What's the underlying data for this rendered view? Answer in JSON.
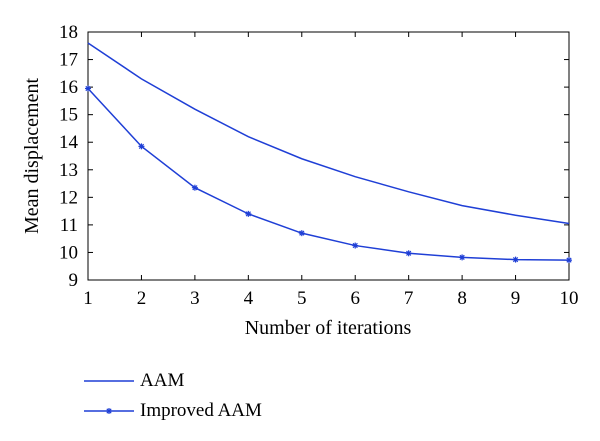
{
  "chart_data": {
    "type": "line",
    "x": [
      1,
      2,
      3,
      4,
      5,
      6,
      7,
      8,
      9,
      10
    ],
    "series": [
      {
        "name": "AAM",
        "values": [
          17.6,
          16.3,
          15.2,
          14.2,
          13.4,
          12.75,
          12.2,
          11.7,
          11.35,
          11.05
        ],
        "marker": "none",
        "color": "#1f3fd6"
      },
      {
        "name": "Improved AAM",
        "values": [
          15.95,
          13.85,
          12.35,
          11.4,
          10.7,
          10.25,
          9.97,
          9.82,
          9.74,
          9.72
        ],
        "marker": "star",
        "color": "#1f3fd6"
      }
    ],
    "xlabel": "Number of iterations",
    "ylabel": "Mean displacement",
    "xlim": [
      1,
      10
    ],
    "ylim": [
      9,
      18
    ],
    "xticks": [
      "1",
      "2",
      "3",
      "4",
      "5",
      "6",
      "7",
      "8",
      "9",
      "10"
    ],
    "yticks": [
      "9",
      "10",
      "11",
      "12",
      "13",
      "14",
      "15",
      "16",
      "17",
      "18"
    ],
    "grid": false,
    "legend_position": "bottom-left"
  }
}
